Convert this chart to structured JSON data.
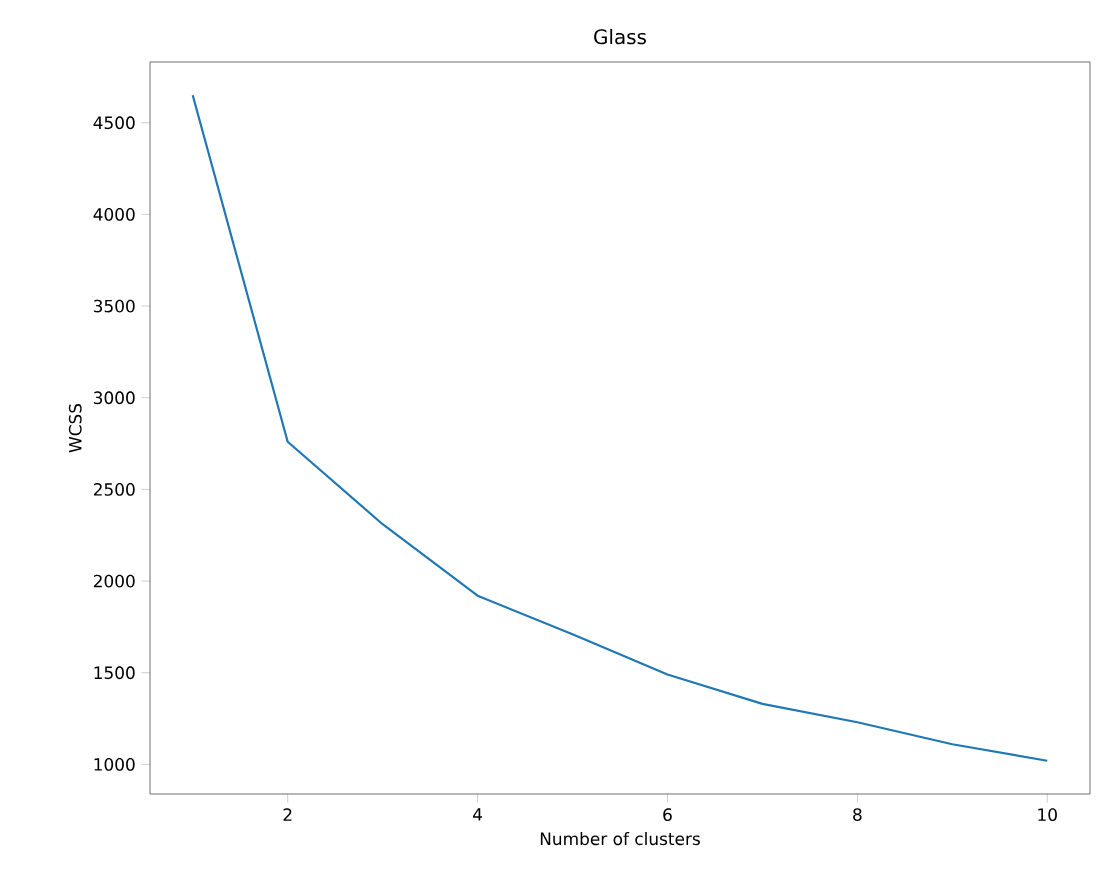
{
  "chart_data": {
    "type": "line",
    "title": "Glass",
    "xlabel": "Number of clusters",
    "ylabel": "WCSS",
    "x": [
      1,
      2,
      3,
      4,
      5,
      6,
      7,
      8,
      9,
      10
    ],
    "series": [
      {
        "color": "#1f77b4",
        "values": [
          4650,
          2760,
          2310,
          1920,
          1710,
          1490,
          1330,
          1230,
          1110,
          1020
        ]
      }
    ],
    "xlim": [
      0.55,
      10.45
    ],
    "ylim": [
      838.5,
      4831.5
    ],
    "xticks": [
      2,
      4,
      6,
      8,
      10
    ],
    "yticks": [
      1000,
      1500,
      2000,
      2500,
      3000,
      3500,
      4000,
      4500
    ],
    "grid": false,
    "marker": "none",
    "line_style": "solid"
  }
}
